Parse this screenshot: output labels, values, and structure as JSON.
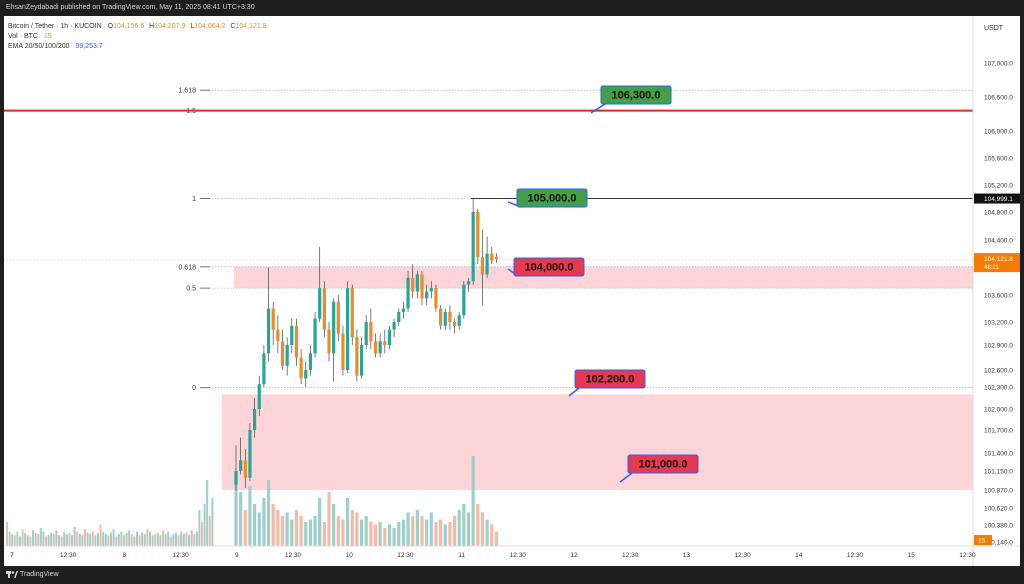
{
  "header": {
    "published_text": "EhsanZeydabadi published on TradingView.com, May 11, 2025 08:41 UTC+3:30"
  },
  "footer": {
    "brand": "TradingView"
  },
  "legend": {
    "symbol": "Bitcoin / Tether · 1h · KUCOIN",
    "o_label": "O",
    "o_value": "104,156.6",
    "h_label": "H",
    "h_value": "104,207.9",
    "l_label": "L",
    "l_value": "104,064.2",
    "c_label": "C",
    "c_value": "104,121.8",
    "vol_label": "Vol · BTC",
    "vol_value": "15",
    "ema_label": "EMA 20/50/100/200",
    "ema_value": "99,253.7"
  },
  "colors": {
    "up": "#26a69a",
    "down": "#ef8b25",
    "vol_up": "#9fcfca",
    "vol_down": "#f7b9a6",
    "zone": "#fdd5d8",
    "red_line": "#d32f2f",
    "green_box": "#43a047",
    "red_box": "#e53950",
    "current_price": "#f57c00"
  },
  "chart_data": {
    "type": "candlestick",
    "quote_currency": "USDT",
    "x_tick_labels": [
      "7",
      "12:30",
      "8",
      "12:30",
      "9",
      "12:30",
      "10",
      "12:30",
      "11",
      "12:30",
      "12",
      "12:30",
      "13",
      "12:30",
      "14",
      "12:30",
      "15",
      "12:30"
    ],
    "y_tick_labels": [
      "107,000.0",
      "106,500.0",
      "106,000.0",
      "105,600.0",
      "105,200.0",
      "104,800.0",
      "104,400.0",
      "103,600.0",
      "103,200.0",
      "102,900.0",
      "102,600.0",
      "102,300.0",
      "102,000.0",
      "101,700.0",
      "101,400.0",
      "101,150.0",
      "100,870.0",
      "100,620.0",
      "100,380.0",
      "100,140.0"
    ],
    "fib_levels": [
      {
        "label": "1.618",
        "price": 106600
      },
      {
        "label": "1.5",
        "price": 106300
      },
      {
        "label": "1",
        "price": 105000
      },
      {
        "label": "0.618",
        "price": 104010
      },
      {
        "label": "0.5",
        "price": 103700
      },
      {
        "label": "0",
        "price": 102290
      }
    ],
    "resistance_line": 106300,
    "high_marker": {
      "label": "104,999.1",
      "price": 104999.1
    },
    "current_price": {
      "label": "104,121.8",
      "countdown": "48:21",
      "price": 104121.8
    },
    "volume_label": "15",
    "zones": [
      {
        "from": 103700,
        "to": 104010
      },
      {
        "from": 100870,
        "to": 102200
      }
    ],
    "targets": [
      {
        "label": "106,300.0",
        "price": 106300,
        "kind": "green"
      },
      {
        "label": "105,000.0",
        "price": 105000,
        "kind": "green"
      },
      {
        "label": "104,000.0",
        "price": 104000,
        "kind": "red"
      },
      {
        "label": "102,200.0",
        "price": 102200,
        "kind": "red"
      },
      {
        "label": "101,000.0",
        "price": 101000,
        "kind": "red"
      }
    ],
    "candles": [
      {
        "o": 100950,
        "h": 101500,
        "l": 100860,
        "c": 101150
      },
      {
        "o": 101150,
        "h": 101600,
        "l": 101100,
        "c": 101300
      },
      {
        "o": 101300,
        "h": 101450,
        "l": 100900,
        "c": 101050
      },
      {
        "o": 101050,
        "h": 101800,
        "l": 101000,
        "c": 101700
      },
      {
        "o": 101700,
        "h": 102150,
        "l": 101600,
        "c": 102000
      },
      {
        "o": 102000,
        "h": 102500,
        "l": 101900,
        "c": 102350
      },
      {
        "o": 102350,
        "h": 102900,
        "l": 102300,
        "c": 102800
      },
      {
        "o": 102800,
        "h": 104000,
        "l": 102700,
        "c": 103400
      },
      {
        "o": 103400,
        "h": 103500,
        "l": 102900,
        "c": 103100
      },
      {
        "o": 103100,
        "h": 103300,
        "l": 102800,
        "c": 102950
      },
      {
        "o": 102950,
        "h": 103100,
        "l": 102600,
        "c": 102650
      },
      {
        "o": 102650,
        "h": 103000,
        "l": 102500,
        "c": 102900
      },
      {
        "o": 102900,
        "h": 103250,
        "l": 102800,
        "c": 103150
      },
      {
        "o": 103150,
        "h": 103250,
        "l": 102650,
        "c": 102750
      },
      {
        "o": 102750,
        "h": 102850,
        "l": 102350,
        "c": 102450
      },
      {
        "o": 102450,
        "h": 102700,
        "l": 102300,
        "c": 102600
      },
      {
        "o": 102600,
        "h": 102900,
        "l": 102500,
        "c": 102800
      },
      {
        "o": 102800,
        "h": 103350,
        "l": 102750,
        "c": 103250
      },
      {
        "o": 103250,
        "h": 104300,
        "l": 103200,
        "c": 103700
      },
      {
        "o": 103700,
        "h": 103800,
        "l": 103000,
        "c": 103100
      },
      {
        "o": 103100,
        "h": 103200,
        "l": 102700,
        "c": 102800
      },
      {
        "o": 102800,
        "h": 103550,
        "l": 102400,
        "c": 103500
      },
      {
        "o": 103500,
        "h": 103600,
        "l": 102950,
        "c": 103050
      },
      {
        "o": 103050,
        "h": 103150,
        "l": 102500,
        "c": 102600
      },
      {
        "o": 102600,
        "h": 103800,
        "l": 102550,
        "c": 103700
      },
      {
        "o": 103700,
        "h": 103750,
        "l": 102900,
        "c": 103000
      },
      {
        "o": 103000,
        "h": 103100,
        "l": 102400,
        "c": 102500
      },
      {
        "o": 102500,
        "h": 103000,
        "l": 102450,
        "c": 102900
      },
      {
        "o": 102900,
        "h": 103300,
        "l": 102850,
        "c": 103200
      },
      {
        "o": 103200,
        "h": 103400,
        "l": 102850,
        "c": 102950
      },
      {
        "o": 102950,
        "h": 103050,
        "l": 102750,
        "c": 102800
      },
      {
        "o": 102800,
        "h": 103050,
        "l": 102750,
        "c": 102950
      },
      {
        "o": 102950,
        "h": 103100,
        "l": 102800,
        "c": 102900
      },
      {
        "o": 102900,
        "h": 103150,
        "l": 102850,
        "c": 103100
      },
      {
        "o": 103100,
        "h": 103250,
        "l": 103000,
        "c": 103200
      },
      {
        "o": 103200,
        "h": 103400,
        "l": 103150,
        "c": 103350
      },
      {
        "o": 103350,
        "h": 103500,
        "l": 103250,
        "c": 103400
      },
      {
        "o": 103400,
        "h": 103950,
        "l": 103350,
        "c": 103850
      },
      {
        "o": 103850,
        "h": 104050,
        "l": 103550,
        "c": 103650
      },
      {
        "o": 103650,
        "h": 103950,
        "l": 103550,
        "c": 103900
      },
      {
        "o": 103900,
        "h": 103950,
        "l": 103450,
        "c": 103550
      },
      {
        "o": 103550,
        "h": 103750,
        "l": 103450,
        "c": 103650
      },
      {
        "o": 103650,
        "h": 103800,
        "l": 103550,
        "c": 103700
      },
      {
        "o": 103700,
        "h": 103750,
        "l": 103350,
        "c": 103400
      },
      {
        "o": 103400,
        "h": 103450,
        "l": 103100,
        "c": 103150
      },
      {
        "o": 103150,
        "h": 103400,
        "l": 103100,
        "c": 103350
      },
      {
        "o": 103350,
        "h": 103450,
        "l": 103100,
        "c": 103200
      },
      {
        "o": 103200,
        "h": 103250,
        "l": 103050,
        "c": 103150
      },
      {
        "o": 103150,
        "h": 103350,
        "l": 103100,
        "c": 103300
      },
      {
        "o": 103300,
        "h": 103800,
        "l": 103250,
        "c": 103750
      },
      {
        "o": 103750,
        "h": 103850,
        "l": 103650,
        "c": 103800
      },
      {
        "o": 103800,
        "h": 104999.1,
        "l": 103750,
        "c": 104800
      },
      {
        "o": 104800,
        "h": 104850,
        "l": 104050,
        "c": 104150
      },
      {
        "o": 104150,
        "h": 104550,
        "l": 103450,
        "c": 103900
      },
      {
        "o": 103900,
        "h": 104450,
        "l": 103850,
        "c": 104200
      },
      {
        "o": 104200,
        "h": 104300,
        "l": 104050,
        "c": 104100
      },
      {
        "o": 104156.6,
        "h": 104207.9,
        "l": 104064.2,
        "c": 104121.8
      }
    ],
    "pre_volume": [
      0.2,
      0.12,
      0.1,
      0.09,
      0.12,
      0.08,
      0.14,
      0.11,
      0.09,
      0.08,
      0.13,
      0.11,
      0.1,
      0.15,
      0.12,
      0.08,
      0.09,
      0.11,
      0.1,
      0.13,
      0.09,
      0.08,
      0.12,
      0.1,
      0.11,
      0.09,
      0.16,
      0.12,
      0.1,
      0.09,
      0.14,
      0.11,
      0.1,
      0.12,
      0.09,
      0.11,
      0.18,
      0.12,
      0.1,
      0.09,
      0.11,
      0.14,
      0.08,
      0.1,
      0.12,
      0.09,
      0.11,
      0.13,
      0.1,
      0.08,
      0.12,
      0.09,
      0.11,
      0.1,
      0.14,
      0.12,
      0.09,
      0.1,
      0.11,
      0.09,
      0.13,
      0.1,
      0.12,
      0.08,
      0.1,
      0.11,
      0.09,
      0.12,
      0.1,
      0.11,
      0.09,
      0.13,
      0.1,
      0.12,
      0.3,
      0.2,
      0.35,
      0.55,
      0.25,
      0.4
    ],
    "volume": [
      0.6,
      0.45,
      0.3,
      0.5,
      0.35,
      0.28,
      0.4,
      0.55,
      0.35,
      0.3,
      0.25,
      0.28,
      0.22,
      0.3,
      0.25,
      0.2,
      0.22,
      0.25,
      0.4,
      0.2,
      0.45,
      0.35,
      0.25,
      0.22,
      0.4,
      0.3,
      0.28,
      0.22,
      0.25,
      0.2,
      0.18,
      0.2,
      0.15,
      0.18,
      0.15,
      0.2,
      0.22,
      0.28,
      0.25,
      0.3,
      0.25,
      0.22,
      0.28,
      0.2,
      0.22,
      0.18,
      0.2,
      0.25,
      0.3,
      0.35,
      0.28,
      0.75,
      0.35,
      0.28,
      0.22,
      0.18,
      0.12
    ]
  }
}
